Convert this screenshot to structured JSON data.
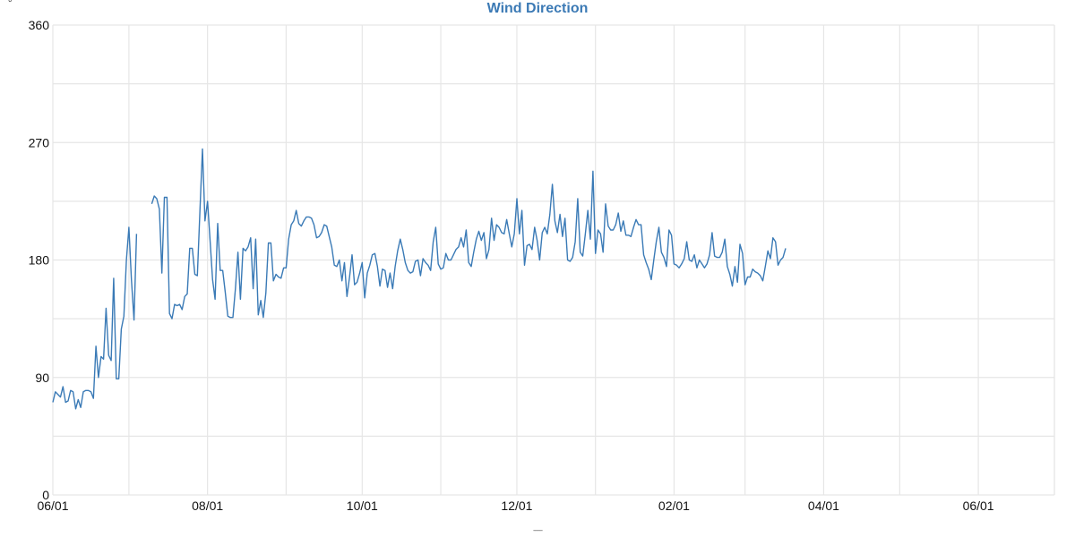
{
  "chart": {
    "title": "Wind Direction",
    "unit_label": "°",
    "footer": "------",
    "colors": {
      "title": "#3c7ab5",
      "line": "#3a7ab6",
      "grid": "#e6e6e6",
      "text": "#111111"
    }
  },
  "chart_data": {
    "type": "line",
    "title": "Wind Direction",
    "xlabel": "",
    "ylabel": "°",
    "ylim": [
      0,
      360
    ],
    "yticks": [
      0,
      90,
      180,
      270,
      360
    ],
    "y_grid_step": 45,
    "x_start": "06/01",
    "x_end": "07/01 (following year)",
    "xtick_labels": [
      "06/01",
      "08/01",
      "10/01",
      "12/01",
      "02/01",
      "04/01",
      "06/01"
    ],
    "x_grid": "monthly",
    "grid": true,
    "legend": "none",
    "series": [
      {
        "name": "Wind Direction",
        "note": "x = day offset from 06/01; y = degrees; gaps indicated by null",
        "points": [
          [
            0,
            71
          ],
          [
            1,
            79
          ],
          [
            2,
            77
          ],
          [
            3,
            75
          ],
          [
            4,
            83
          ],
          [
            5,
            71
          ],
          [
            6,
            72
          ],
          [
            7,
            80
          ],
          [
            8,
            79
          ],
          [
            9,
            66
          ],
          [
            10,
            73
          ],
          [
            11,
            67
          ],
          [
            12,
            79
          ],
          [
            13,
            80
          ],
          [
            14,
            80
          ],
          [
            15,
            79
          ],
          [
            16,
            74
          ],
          [
            17,
            114
          ],
          [
            18,
            90
          ],
          [
            19,
            106
          ],
          [
            20,
            104
          ],
          [
            21,
            143
          ],
          [
            22,
            107
          ],
          [
            23,
            103
          ],
          [
            24,
            166
          ],
          [
            25,
            89
          ],
          [
            26,
            89
          ],
          [
            27,
            127
          ],
          [
            28,
            137
          ],
          [
            29,
            180
          ],
          [
            30,
            205
          ],
          [
            31,
            165
          ],
          [
            32,
            134
          ],
          [
            33,
            200
          ],
          null,
          [
            39,
            223
          ],
          [
            40,
            229
          ],
          [
            41,
            227
          ],
          [
            42,
            219
          ],
          [
            43,
            170
          ],
          [
            44,
            228
          ],
          [
            45,
            228
          ],
          [
            46,
            139
          ],
          [
            47,
            135
          ],
          [
            48,
            146
          ],
          [
            49,
            145
          ],
          [
            50,
            146
          ],
          [
            51,
            142
          ],
          [
            52,
            152
          ],
          [
            53,
            154
          ],
          [
            54,
            189
          ],
          [
            55,
            189
          ],
          [
            56,
            169
          ],
          [
            57,
            168
          ],
          [
            58,
            218
          ],
          [
            59,
            265
          ],
          [
            60,
            210
          ],
          [
            61,
            225
          ],
          [
            62,
            195
          ],
          [
            63,
            165
          ],
          [
            64,
            150
          ],
          [
            65,
            208
          ],
          [
            66,
            172
          ],
          [
            67,
            172
          ],
          [
            68,
            155
          ],
          [
            69,
            137
          ],
          [
            70,
            136
          ],
          [
            71,
            136
          ],
          [
            72,
            158
          ],
          [
            73,
            186
          ],
          [
            74,
            150
          ],
          [
            75,
            189
          ],
          [
            76,
            187
          ],
          [
            77,
            190
          ],
          [
            78,
            197
          ],
          [
            79,
            158
          ],
          [
            80,
            196
          ],
          [
            81,
            138
          ],
          [
            82,
            149
          ],
          [
            83,
            136
          ],
          [
            84,
            155
          ],
          [
            85,
            193
          ],
          [
            86,
            193
          ],
          [
            87,
            164
          ],
          [
            88,
            169
          ],
          [
            89,
            167
          ],
          [
            90,
            166
          ],
          [
            91,
            174
          ],
          [
            92,
            174
          ],
          [
            93,
            196
          ],
          [
            94,
            207
          ],
          [
            95,
            210
          ],
          [
            96,
            218
          ],
          [
            97,
            208
          ],
          [
            98,
            206
          ],
          [
            99,
            210
          ],
          [
            100,
            213
          ],
          [
            101,
            213
          ],
          [
            102,
            212
          ],
          [
            103,
            207
          ],
          [
            104,
            197
          ],
          [
            105,
            198
          ],
          [
            106,
            201
          ],
          [
            107,
            207
          ],
          [
            108,
            206
          ],
          [
            109,
            198
          ],
          [
            110,
            190
          ],
          [
            111,
            176
          ],
          [
            112,
            175
          ],
          [
            113,
            180
          ],
          [
            114,
            164
          ],
          [
            115,
            178
          ],
          [
            116,
            152
          ],
          [
            117,
            167
          ],
          [
            118,
            184
          ],
          [
            119,
            161
          ],
          [
            120,
            163
          ],
          [
            121,
            170
          ],
          [
            122,
            178
          ],
          [
            123,
            151
          ],
          [
            124,
            170
          ],
          [
            125,
            176
          ],
          [
            126,
            184
          ],
          [
            127,
            185
          ],
          [
            128,
            175
          ],
          [
            129,
            160
          ],
          [
            130,
            173
          ],
          [
            131,
            172
          ],
          [
            132,
            159
          ],
          [
            133,
            170
          ],
          [
            134,
            158
          ],
          [
            135,
            175
          ],
          [
            136,
            187
          ],
          [
            137,
            196
          ],
          [
            138,
            188
          ],
          [
            139,
            178
          ],
          [
            140,
            172
          ],
          [
            141,
            170
          ],
          [
            142,
            171
          ],
          [
            143,
            179
          ],
          [
            144,
            180
          ],
          [
            145,
            168
          ],
          [
            146,
            181
          ],
          [
            147,
            178
          ],
          [
            148,
            176
          ],
          [
            149,
            172
          ],
          [
            150,
            194
          ],
          [
            151,
            205
          ],
          [
            152,
            177
          ],
          [
            153,
            173
          ],
          [
            154,
            174
          ],
          [
            155,
            185
          ],
          [
            156,
            180
          ],
          [
            157,
            180
          ],
          [
            158,
            184
          ],
          [
            159,
            188
          ],
          [
            160,
            190
          ],
          [
            161,
            197
          ],
          [
            162,
            190
          ],
          [
            163,
            203
          ],
          [
            164,
            178
          ],
          [
            165,
            175
          ],
          [
            166,
            186
          ],
          [
            167,
            196
          ],
          [
            168,
            202
          ],
          [
            169,
            195
          ],
          [
            170,
            201
          ],
          [
            171,
            181
          ],
          [
            172,
            188
          ],
          [
            173,
            212
          ],
          [
            174,
            195
          ],
          [
            175,
            207
          ],
          [
            176,
            205
          ],
          [
            177,
            201
          ],
          [
            178,
            200
          ],
          [
            179,
            211
          ],
          [
            180,
            200
          ],
          [
            181,
            190
          ],
          [
            182,
            200
          ],
          [
            183,
            227
          ],
          [
            184,
            200
          ],
          [
            185,
            218
          ],
          [
            186,
            176
          ],
          [
            187,
            191
          ],
          [
            188,
            192
          ],
          [
            189,
            188
          ],
          [
            190,
            205
          ],
          [
            191,
            195
          ],
          [
            192,
            180
          ],
          [
            193,
            201
          ],
          [
            194,
            205
          ],
          [
            195,
            200
          ],
          [
            196,
            215
          ],
          [
            197,
            238
          ],
          [
            198,
            210
          ],
          [
            199,
            201
          ],
          [
            200,
            215
          ],
          [
            201,
            198
          ],
          [
            202,
            212
          ],
          [
            203,
            180
          ],
          [
            204,
            179
          ],
          [
            205,
            182
          ],
          [
            206,
            194
          ],
          [
            207,
            227
          ],
          [
            208,
            186
          ],
          [
            209,
            183
          ],
          [
            210,
            200
          ],
          [
            211,
            218
          ],
          [
            212,
            196
          ],
          [
            213,
            248
          ],
          [
            214,
            185
          ],
          [
            215,
            203
          ],
          [
            216,
            200
          ],
          [
            217,
            186
          ],
          [
            218,
            223
          ],
          [
            219,
            206
          ],
          [
            220,
            203
          ],
          [
            221,
            203
          ],
          [
            222,
            207
          ],
          [
            223,
            216
          ],
          [
            224,
            202
          ],
          [
            225,
            210
          ],
          [
            226,
            199
          ],
          [
            227,
            199
          ],
          [
            228,
            198
          ],
          [
            229,
            205
          ],
          [
            230,
            211
          ],
          [
            231,
            207
          ],
          [
            232,
            207
          ],
          [
            233,
            184
          ],
          [
            234,
            178
          ],
          [
            235,
            173
          ],
          [
            236,
            165
          ],
          [
            237,
            180
          ],
          [
            238,
            194
          ],
          [
            239,
            205
          ],
          [
            240,
            186
          ],
          [
            241,
            182
          ],
          [
            242,
            175
          ],
          [
            243,
            203
          ],
          [
            244,
            199
          ],
          [
            245,
            177
          ],
          [
            246,
            176
          ],
          [
            247,
            174
          ],
          [
            248,
            177
          ],
          [
            249,
            181
          ],
          [
            250,
            194
          ],
          [
            251,
            180
          ],
          [
            252,
            179
          ],
          [
            253,
            184
          ],
          [
            254,
            174
          ],
          [
            255,
            180
          ],
          [
            256,
            177
          ],
          [
            257,
            174
          ],
          [
            258,
            177
          ],
          [
            259,
            184
          ],
          [
            260,
            201
          ],
          [
            261,
            183
          ],
          [
            262,
            182
          ],
          [
            263,
            182
          ],
          [
            264,
            186
          ],
          [
            265,
            196
          ],
          [
            266,
            175
          ],
          [
            267,
            169
          ],
          [
            268,
            160
          ],
          [
            269,
            175
          ],
          [
            270,
            163
          ],
          [
            271,
            192
          ],
          [
            272,
            185
          ],
          [
            273,
            161
          ],
          [
            274,
            167
          ],
          [
            275,
            167
          ],
          [
            276,
            173
          ],
          [
            277,
            171
          ],
          [
            278,
            170
          ],
          [
            279,
            168
          ],
          [
            280,
            164
          ],
          [
            281,
            175
          ],
          [
            282,
            187
          ],
          [
            283,
            181
          ],
          [
            284,
            197
          ],
          [
            285,
            194
          ],
          [
            286,
            176
          ],
          [
            287,
            180
          ],
          [
            288,
            182
          ],
          [
            289,
            189
          ]
        ]
      }
    ]
  }
}
